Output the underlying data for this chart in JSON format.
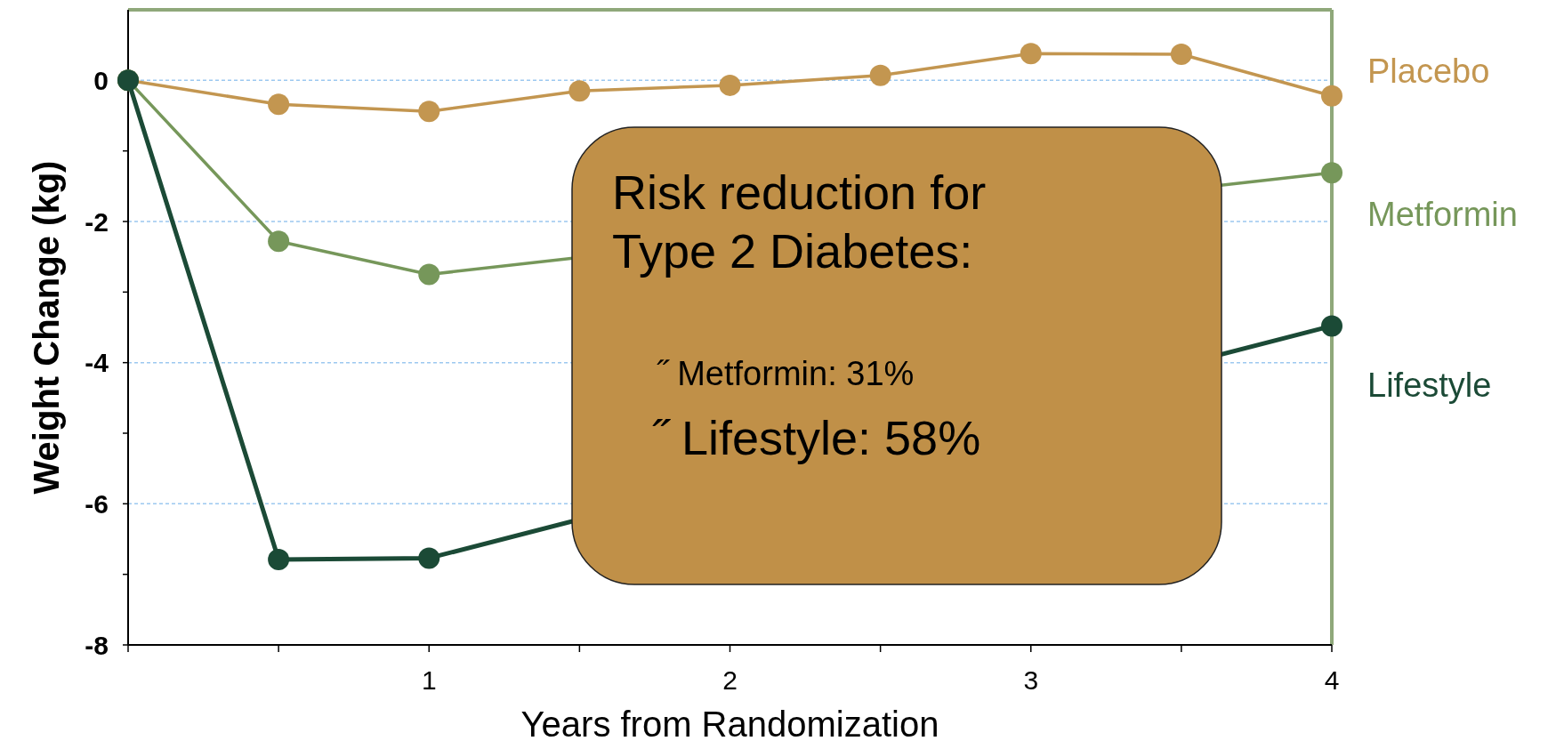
{
  "chart_data": {
    "type": "line",
    "xlabel": "Years from Randomization",
    "ylabel": "Weight Change (kg)",
    "x": [
      0,
      0.5,
      1,
      1.5,
      2,
      2.5,
      3,
      3.5,
      4
    ],
    "series": [
      {
        "name": "Placebo",
        "color": "#c39650",
        "values": [
          0,
          -0.34,
          -0.44,
          -0.15,
          -0.07,
          0.07,
          0.38,
          0.37,
          -0.22
        ]
      },
      {
        "name": "Metformin",
        "color": "#76975a",
        "values": [
          0,
          -2.28,
          -2.75,
          null,
          null,
          null,
          null,
          null,
          -1.31
        ]
      },
      {
        "name": "Lifestyle",
        "color": "#1b4a36",
        "values": [
          0,
          -6.79,
          -6.77,
          null,
          null,
          null,
          null,
          null,
          -3.48
        ]
      }
    ],
    "xlim": [
      0,
      4
    ],
    "xticks": [
      {
        "value": 0,
        "label": null
      },
      {
        "value": 0.5,
        "label": null
      },
      1,
      {
        "value": 1.5,
        "label": null
      },
      2,
      {
        "value": 2.5,
        "label": null
      },
      3,
      {
        "value": 3.5,
        "label": null
      },
      4
    ],
    "ylim": [
      -8,
      1
    ],
    "yticks": [
      -8,
      {
        "value": -7,
        "label": null
      },
      -6,
      {
        "value": -5,
        "label": null
      },
      -4,
      {
        "value": -3,
        "label": null
      },
      -2,
      {
        "value": -1,
        "label": null
      },
      0
    ],
    "grid": "y",
    "legend": false,
    "marker": "circle",
    "line_style": "solid",
    "annotations": [
      "Risk reduction for Type 2 Diabetes:",
      "˝ Metformin: 31%",
      "˝ Lifestyle: 58%"
    ]
  }
}
